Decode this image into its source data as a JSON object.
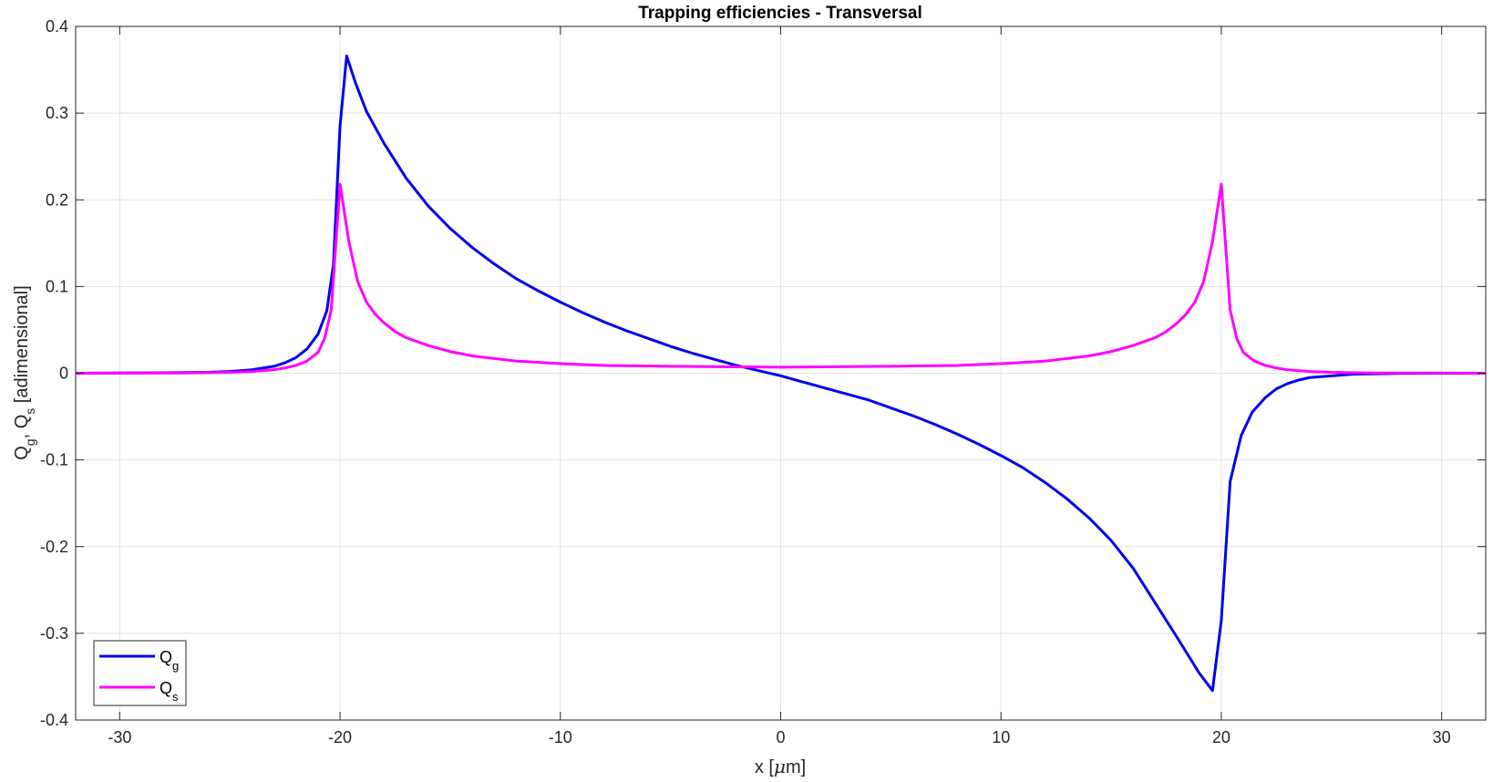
{
  "chart_data": {
    "type": "line",
    "title": "Trapping efficiencies - Transversal",
    "xlabel": {
      "main": "x [",
      "mu": "μ",
      "rest": "m]"
    },
    "ylabel": {
      "q": "Q",
      "g": "g",
      "sep": ", Q",
      "s": "s",
      "rest": " [adimensional]"
    },
    "xlim": [
      -32,
      32
    ],
    "ylim": [
      -0.4,
      0.4
    ],
    "xticks": [
      -30,
      -20,
      -10,
      0,
      10,
      20,
      30
    ],
    "xtick_labels": [
      "-30",
      "-20",
      "-10",
      "0",
      "10",
      "20",
      "30"
    ],
    "yticks": [
      -0.4,
      -0.3,
      -0.2,
      -0.1,
      0,
      0.1,
      0.2,
      0.3,
      0.4
    ],
    "ytick_labels": [
      "-0.4",
      "-0.3",
      "-0.2",
      "-0.1",
      "0",
      "0.1",
      "0.2",
      "0.3",
      "0.4"
    ],
    "grid": true,
    "legend_position": "bottom-left",
    "series": [
      {
        "name_main": "Q",
        "name_sub": "g",
        "color": "#0000ee",
        "points": [
          [
            -32,
            0
          ],
          [
            -28,
            0.0005
          ],
          [
            -26,
            0.001
          ],
          [
            -25,
            0.002
          ],
          [
            -24,
            0.004
          ],
          [
            -23,
            0.008
          ],
          [
            -22.5,
            0.012
          ],
          [
            -22,
            0.018
          ],
          [
            -21.5,
            0.028
          ],
          [
            -21,
            0.045
          ],
          [
            -20.6,
            0.072
          ],
          [
            -20.3,
            0.125
          ],
          [
            -20,
            0.285
          ],
          [
            -19.7,
            0.366
          ],
          [
            -19.3,
            0.335
          ],
          [
            -18.8,
            0.302
          ],
          [
            -18,
            0.265
          ],
          [
            -17,
            0.225
          ],
          [
            -16,
            0.193
          ],
          [
            -15,
            0.167
          ],
          [
            -14,
            0.145
          ],
          [
            -13,
            0.126
          ],
          [
            -12,
            0.109
          ],
          [
            -11,
            0.095
          ],
          [
            -10,
            0.082
          ],
          [
            -9,
            0.07
          ],
          [
            -8,
            0.059
          ],
          [
            -7,
            0.049
          ],
          [
            -6,
            0.04
          ],
          [
            -5,
            0.031
          ],
          [
            -4,
            0.023
          ],
          [
            -3,
            0.016
          ],
          [
            -2,
            0.009
          ],
          [
            -1,
            0.003
          ],
          [
            0,
            -0.003
          ],
          [
            1,
            -0.01
          ],
          [
            2,
            -0.017
          ],
          [
            3,
            -0.024
          ],
          [
            4,
            -0.031
          ],
          [
            5,
            -0.04
          ],
          [
            6,
            -0.049
          ],
          [
            7,
            -0.059
          ],
          [
            8,
            -0.07
          ],
          [
            9,
            -0.082
          ],
          [
            10,
            -0.095
          ],
          [
            11,
            -0.109
          ],
          [
            12,
            -0.126
          ],
          [
            13,
            -0.145
          ],
          [
            14,
            -0.167
          ],
          [
            15,
            -0.193
          ],
          [
            16,
            -0.225
          ],
          [
            17,
            -0.265
          ],
          [
            18,
            -0.305
          ],
          [
            19,
            -0.346
          ],
          [
            19.6,
            -0.366
          ],
          [
            20,
            -0.285
          ],
          [
            20.4,
            -0.125
          ],
          [
            20.9,
            -0.072
          ],
          [
            21.4,
            -0.045
          ],
          [
            22,
            -0.028
          ],
          [
            22.5,
            -0.018
          ],
          [
            23,
            -0.012
          ],
          [
            23.5,
            -0.008
          ],
          [
            24,
            -0.005
          ],
          [
            25,
            -0.003
          ],
          [
            26,
            -0.001
          ],
          [
            28,
            -0.0003
          ],
          [
            32,
            0
          ]
        ]
      },
      {
        "name_main": "Q",
        "name_sub": "s",
        "color": "#ff00ff",
        "points": [
          [
            -32,
            0
          ],
          [
            -27,
            0.0003
          ],
          [
            -25,
            0.001
          ],
          [
            -24,
            0.002
          ],
          [
            -23,
            0.004
          ],
          [
            -22.5,
            0.006
          ],
          [
            -22,
            0.009
          ],
          [
            -21.5,
            0.014
          ],
          [
            -21,
            0.024
          ],
          [
            -20.7,
            0.04
          ],
          [
            -20.4,
            0.073
          ],
          [
            -20,
            0.218
          ],
          [
            -19.6,
            0.152
          ],
          [
            -19.2,
            0.106
          ],
          [
            -18.8,
            0.082
          ],
          [
            -18.4,
            0.068
          ],
          [
            -18,
            0.058
          ],
          [
            -17.5,
            0.048
          ],
          [
            -17,
            0.041
          ],
          [
            -16,
            0.032
          ],
          [
            -15,
            0.025
          ],
          [
            -14,
            0.02
          ],
          [
            -12,
            0.014
          ],
          [
            -10,
            0.011
          ],
          [
            -8,
            0.009
          ],
          [
            -5,
            0.008
          ],
          [
            0,
            0.007
          ],
          [
            5,
            0.008
          ],
          [
            8,
            0.009
          ],
          [
            10,
            0.011
          ],
          [
            12,
            0.014
          ],
          [
            14,
            0.02
          ],
          [
            15,
            0.025
          ],
          [
            16,
            0.032
          ],
          [
            17,
            0.041
          ],
          [
            17.5,
            0.048
          ],
          [
            18,
            0.058
          ],
          [
            18.4,
            0.068
          ],
          [
            18.8,
            0.082
          ],
          [
            19.2,
            0.106
          ],
          [
            19.6,
            0.152
          ],
          [
            20,
            0.218
          ],
          [
            20.4,
            0.073
          ],
          [
            20.7,
            0.04
          ],
          [
            21,
            0.024
          ],
          [
            21.5,
            0.014
          ],
          [
            22,
            0.009
          ],
          [
            22.5,
            0.006
          ],
          [
            23,
            0.004
          ],
          [
            24,
            0.002
          ],
          [
            25,
            0.001
          ],
          [
            27,
            0.0003
          ],
          [
            32,
            0
          ]
        ]
      }
    ]
  }
}
